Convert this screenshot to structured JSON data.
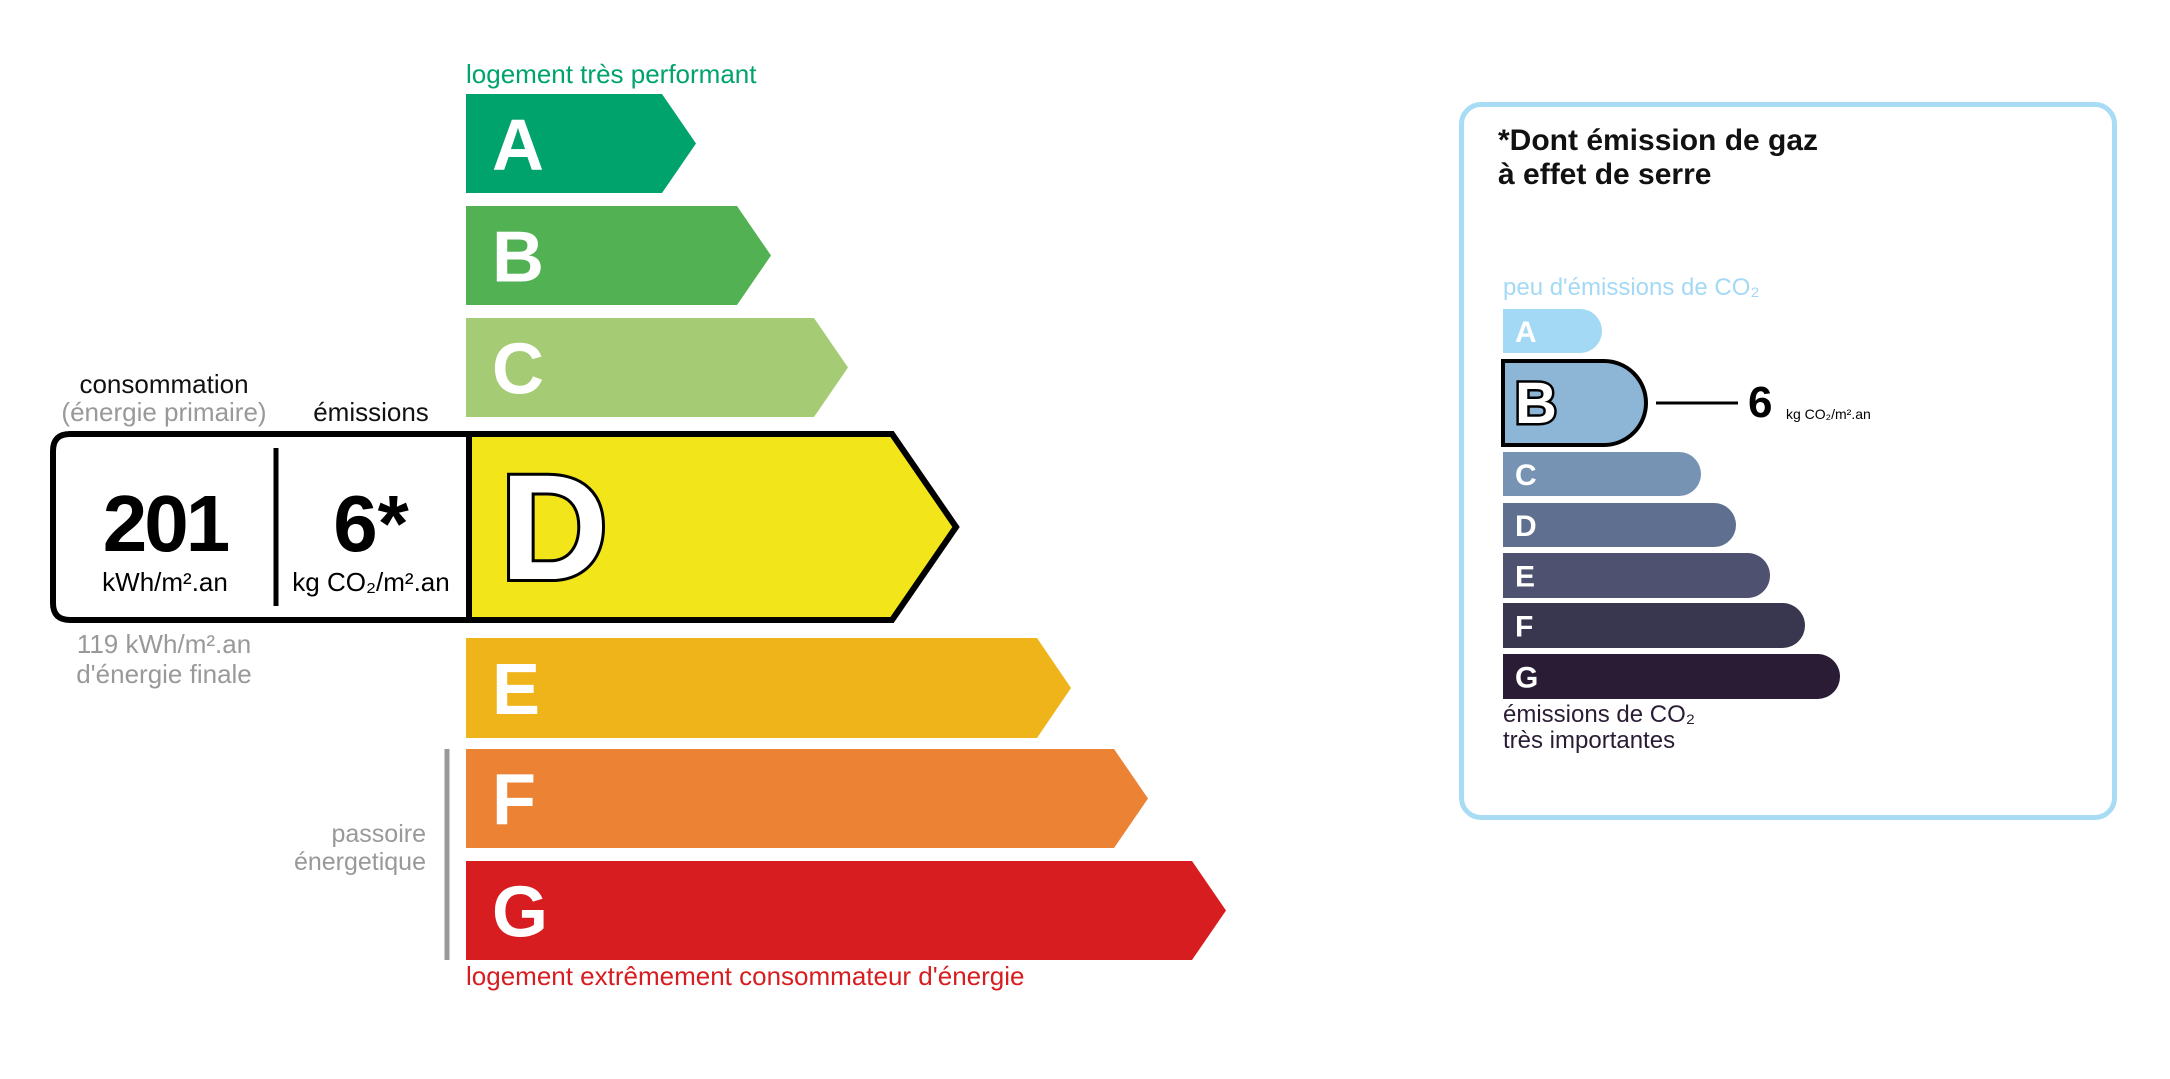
{
  "energy": {
    "top_label": "logement très performant",
    "bottom_label": "logement extrêmement consommateur d'énergie",
    "passoire_line1": "passoire",
    "passoire_line2": "énergetique",
    "classes": [
      {
        "letter": "A",
        "color": "#00a36c"
      },
      {
        "letter": "B",
        "color": "#52b153"
      },
      {
        "letter": "C",
        "color": "#a5cc74"
      },
      {
        "letter": "D",
        "color": "#f2e61b"
      },
      {
        "letter": "E",
        "color": "#efb41a"
      },
      {
        "letter": "F",
        "color": "#eb8234"
      },
      {
        "letter": "G",
        "color": "#d71d20"
      }
    ],
    "current_class": "D",
    "consumption_label": "consommation",
    "consumption_sublabel": "(énergie primaire)",
    "emissions_label": "émissions",
    "consumption_value": "201",
    "consumption_unit": "kWh/m².an",
    "emissions_value": "6*",
    "emissions_unit": "kg CO₂/m².an",
    "final_energy_value": "119 kWh/m².an",
    "final_energy_label": "d'énergie finale"
  },
  "ghg": {
    "title_line1": "*Dont émission de gaz",
    "title_line2": "à effet de serre",
    "top_label": "peu d'émissions de CO₂",
    "bottom_line1": "émissions de CO₂",
    "bottom_line2": "très importantes",
    "classes": [
      {
        "letter": "A",
        "color": "#a3d9f5"
      },
      {
        "letter": "B",
        "color": "#8db5d6"
      },
      {
        "letter": "C",
        "color": "#7693b4"
      },
      {
        "letter": "D",
        "color": "#5f6f8f"
      },
      {
        "letter": "E",
        "color": "#4e516f"
      },
      {
        "letter": "F",
        "color": "#39364f"
      },
      {
        "letter": "G",
        "color": "#2a1c35"
      }
    ],
    "current_class": "B",
    "value": "6",
    "unit": "kg CO₂/m².an",
    "border_color": "#a8dcf5"
  }
}
